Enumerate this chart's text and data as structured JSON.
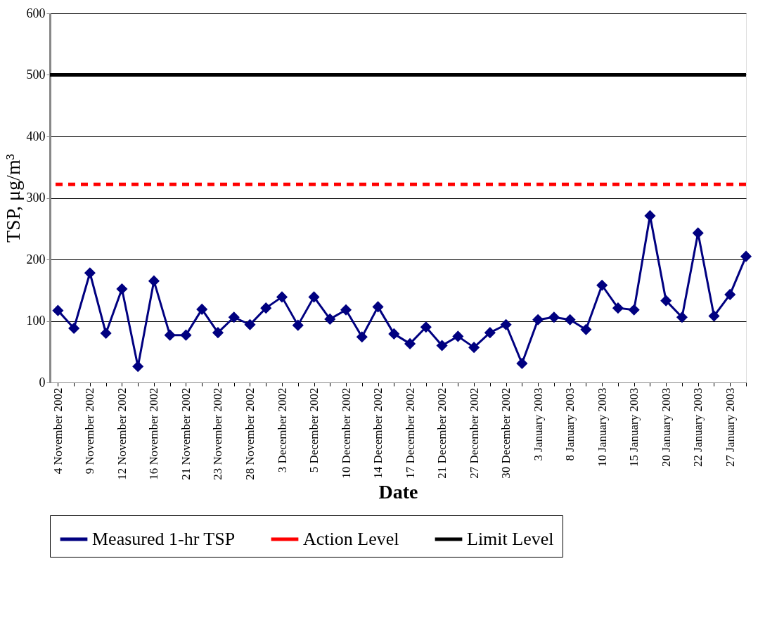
{
  "chart_data": {
    "type": "line",
    "xlabel": "Date",
    "ylabel": "TSP, μg/m³",
    "categories": [
      "4 November 2002",
      null,
      "9 November 2002",
      null,
      "12 November 2002",
      null,
      "16 November 2002",
      null,
      "21 November 2002",
      null,
      "23 November 2002",
      null,
      "28 November 2002",
      null,
      "3 December 2002",
      null,
      "5 December 2002",
      null,
      "10 December 2002",
      null,
      "14 December 2002",
      null,
      "17 December 2002",
      null,
      "21 December 2002",
      null,
      "27 December 2002",
      null,
      "30 December 2002",
      null,
      "3 January 2003",
      null,
      "8 January 2003",
      null,
      "10 January 2003",
      null,
      "15 January 2003",
      null,
      "20 January 2003",
      null,
      "22 January 2003",
      null,
      "27 January 2003",
      null
    ],
    "series": [
      {
        "name": "Measured 1-hr TSP",
        "color": "#000080",
        "values": [
          117,
          88,
          178,
          80,
          152,
          26,
          165,
          77,
          77,
          119,
          81,
          106,
          94,
          121,
          139,
          93,
          139,
          103,
          118,
          74,
          123,
          79,
          63,
          90,
          60,
          75,
          57,
          81,
          94,
          31,
          102,
          106,
          102,
          86,
          158,
          121,
          118,
          271,
          133,
          106,
          243,
          108,
          143,
          205
        ]
      }
    ],
    "ref_lines": [
      {
        "axis": "y",
        "value": 322,
        "label": "Action Level",
        "color": "#ff0000",
        "line_style": "dashed"
      },
      {
        "axis": "y",
        "value": 500,
        "label": "Limit Level",
        "color": "#000000",
        "line_style": "solid"
      }
    ],
    "ylim": [
      0,
      600
    ],
    "yticks": [
      0,
      100,
      200,
      300,
      400,
      500,
      600
    ],
    "grid": "y",
    "legend": "bottom",
    "marker": "diamond",
    "line_style": "solid"
  }
}
